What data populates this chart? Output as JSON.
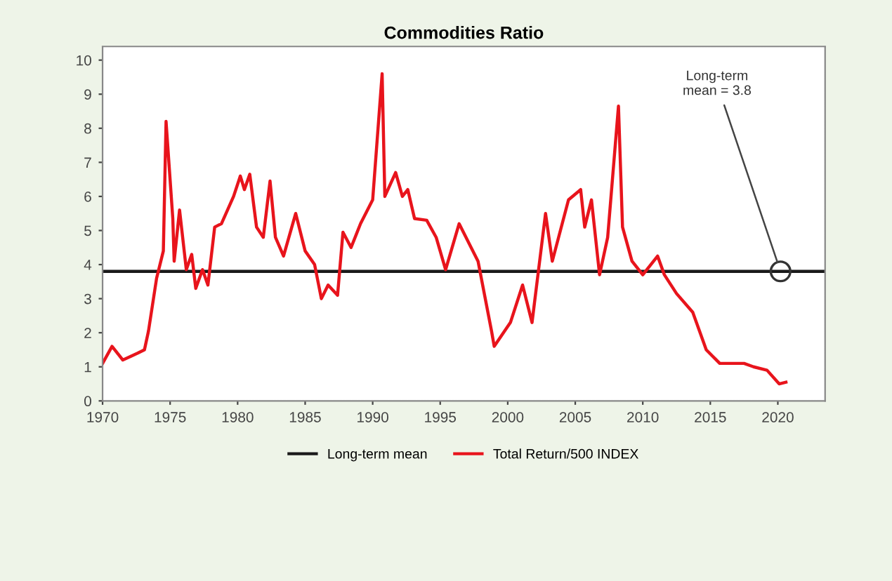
{
  "chart_data": {
    "type": "line",
    "title": "Commodities Ratio",
    "xlim": [
      1970,
      2023.5
    ],
    "xticks": [
      1970,
      1975,
      1980,
      1985,
      1990,
      1995,
      2000,
      2005,
      2010,
      2015,
      2020
    ],
    "ylim": [
      0,
      10.4
    ],
    "yticks": [
      0,
      1,
      2,
      3,
      4,
      5,
      6,
      7,
      8,
      9,
      10
    ],
    "legend": "bottom",
    "grid": false,
    "ref_lines": [
      {
        "axis": "y",
        "value": 3.8,
        "label": "Long-term mean",
        "color": "#1a1a1a"
      }
    ],
    "annotations": [
      {
        "text": "Long-term\nmean = 3.8",
        "x": 2020.2,
        "y": 3.8
      }
    ],
    "series": [
      {
        "name": "Total Return/500 INDEX",
        "color": "#e8141c",
        "x": [
          1970,
          1970.7,
          1971.5,
          1972.6,
          1973.1,
          1973.4,
          1974,
          1974.5,
          1974.7,
          1975.2,
          1975.3,
          1975.7,
          1976.2,
          1976.6,
          1976.9,
          1977.4,
          1977.8,
          1978.3,
          1978.8,
          1979.7,
          1980.2,
          1980.5,
          1980.9,
          1981.4,
          1981.9,
          1982.4,
          1982.8,
          1983.4,
          1984.3,
          1985,
          1985.7,
          1986.2,
          1986.7,
          1987.4,
          1987.8,
          1988.4,
          1989.1,
          1990,
          1990.7,
          1990.9,
          1991.7,
          1992.2,
          1992.6,
          1993.1,
          1994,
          1994.7,
          1995.4,
          1996.4,
          1997.8,
          1998.8,
          1999,
          2000.2,
          2001.1,
          2001.8,
          2002.8,
          2003.3,
          2004.5,
          2005.4,
          2005.7,
          2006.2,
          2006.8,
          2007.4,
          2008.2,
          2008.5,
          2009.2,
          2010,
          2011.1,
          2011.6,
          2012.5,
          2013.7,
          2014.7,
          2015.7,
          2017.5,
          2018.2,
          2019.2,
          2020.1,
          2020.6
        ],
        "values": [
          1.1,
          1.6,
          1.2,
          1.4,
          1.5,
          2.05,
          3.6,
          4.4,
          8.2,
          5.35,
          4.1,
          5.6,
          3.85,
          4.3,
          3.3,
          3.85,
          3.4,
          5.1,
          5.2,
          6.0,
          6.6,
          6.2,
          6.65,
          5.1,
          4.8,
          6.45,
          4.8,
          4.25,
          5.5,
          4.4,
          4.0,
          3.0,
          3.4,
          3.1,
          4.95,
          4.5,
          5.2,
          5.9,
          9.6,
          6.0,
          6.7,
          6.0,
          6.2,
          5.35,
          5.3,
          4.8,
          3.85,
          5.2,
          4.1,
          2.05,
          1.6,
          2.3,
          3.4,
          2.3,
          5.5,
          4.1,
          5.9,
          6.2,
          5.1,
          5.9,
          3.7,
          4.8,
          8.65,
          5.1,
          4.1,
          3.7,
          4.25,
          3.7,
          3.15,
          2.6,
          1.5,
          1.1,
          1.1,
          1.0,
          0.9,
          0.5,
          0.55
        ]
      }
    ]
  }
}
